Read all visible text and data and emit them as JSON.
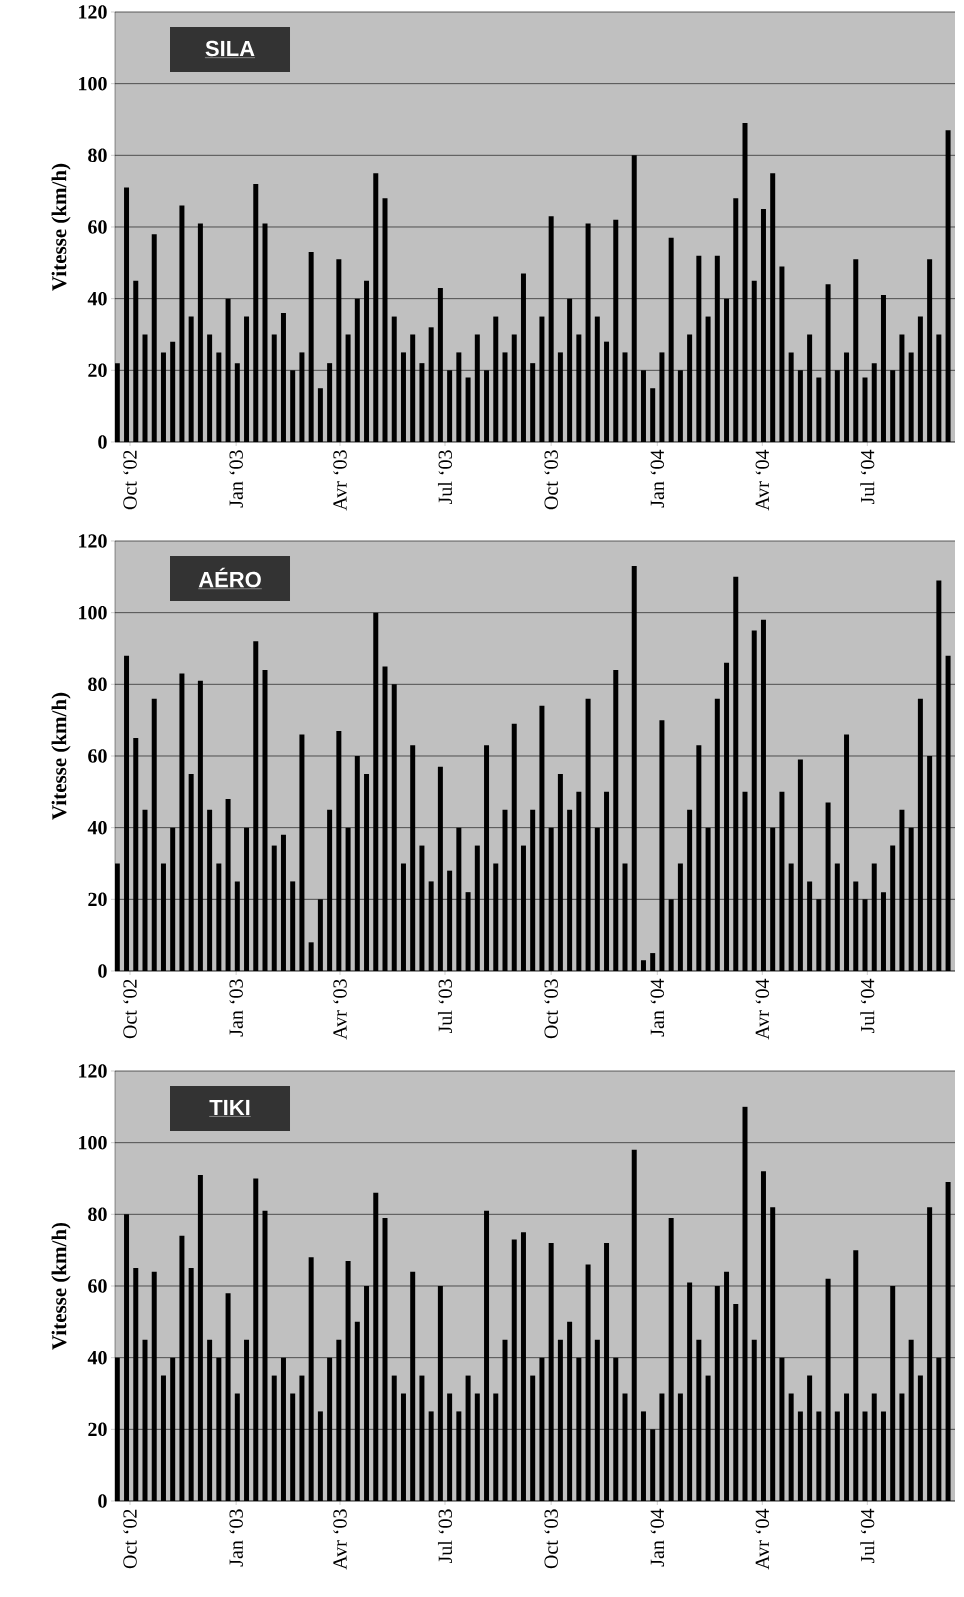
{
  "chart_data": [
    {
      "type": "bar",
      "title": "SILA",
      "ylabel": "Vitesse (km/h)",
      "color": "#000000",
      "grid": "y",
      "xlim": [
        "2002-09-18",
        "2004-09-15"
      ],
      "ylim": [
        0,
        120
      ],
      "yticks": [
        0,
        20,
        40,
        60,
        80,
        100,
        120
      ],
      "xticks": [
        {
          "value": "2002-10-01",
          "label": "Oct ‘02"
        },
        {
          "value": "2003-01-01",
          "label": "Jan ‘03"
        },
        {
          "value": "2003-04-01",
          "label": "Avr ‘03"
        },
        {
          "value": "2003-07-01",
          "label": "Jul ‘03"
        },
        {
          "value": "2003-10-01",
          "label": "Oct ‘03"
        },
        {
          "value": "2004-01-01",
          "label": "Jan ‘04"
        },
        {
          "value": "2004-04-01",
          "label": "Avr ‘04"
        },
        {
          "value": "2004-07-01",
          "label": "Jul ‘04"
        }
      ],
      "x": [
        "2002-09-20",
        "2002-09-28",
        "2002-10-06",
        "2002-10-14",
        "2002-10-22",
        "2002-10-30",
        "2002-11-07",
        "2002-11-15",
        "2002-11-23",
        "2002-12-01",
        "2002-12-09",
        "2002-12-17",
        "2002-12-25",
        "2003-01-02",
        "2003-01-10",
        "2003-01-18",
        "2003-01-26",
        "2003-02-03",
        "2003-02-11",
        "2003-02-19",
        "2003-02-27",
        "2003-03-07",
        "2003-03-15",
        "2003-03-23",
        "2003-03-31",
        "2003-04-08",
        "2003-04-16",
        "2003-04-24",
        "2003-05-02",
        "2003-05-10",
        "2003-05-18",
        "2003-05-26",
        "2003-06-03",
        "2003-06-11",
        "2003-06-19",
        "2003-06-27",
        "2003-07-05",
        "2003-07-13",
        "2003-07-21",
        "2003-07-29",
        "2003-08-06",
        "2003-08-14",
        "2003-08-22",
        "2003-08-30",
        "2003-09-07",
        "2003-09-15",
        "2003-09-23",
        "2003-10-01",
        "2003-10-09",
        "2003-10-17",
        "2003-10-25",
        "2003-11-02",
        "2003-11-10",
        "2003-11-18",
        "2003-11-26",
        "2003-12-04",
        "2003-12-12",
        "2003-12-20",
        "2003-12-28",
        "2004-01-05",
        "2004-01-13",
        "2004-01-21",
        "2004-01-29",
        "2004-02-06",
        "2004-02-14",
        "2004-02-22",
        "2004-03-01",
        "2004-03-09",
        "2004-03-17",
        "2004-03-25",
        "2004-04-02",
        "2004-04-10",
        "2004-04-18",
        "2004-04-26",
        "2004-05-04",
        "2004-05-12",
        "2004-05-20",
        "2004-05-28",
        "2004-06-05",
        "2004-06-13",
        "2004-06-21",
        "2004-06-29",
        "2004-07-07",
        "2004-07-15",
        "2004-07-23",
        "2004-07-31",
        "2004-08-08",
        "2004-08-16",
        "2004-08-24",
        "2004-09-01",
        "2004-09-09"
      ],
      "values": [
        22,
        71,
        45,
        30,
        58,
        25,
        28,
        66,
        35,
        61,
        30,
        25,
        40,
        22,
        35,
        72,
        61,
        30,
        36,
        20,
        25,
        53,
        15,
        22,
        51,
        30,
        40,
        45,
        75,
        68,
        35,
        25,
        30,
        22,
        32,
        43,
        20,
        25,
        18,
        30,
        20,
        35,
        25,
        30,
        47,
        22,
        35,
        63,
        25,
        40,
        30,
        61,
        35,
        28,
        62,
        25,
        80,
        20,
        15,
        25,
        57,
        20,
        30,
        52,
        35,
        52,
        40,
        68,
        89,
        45,
        65,
        75,
        49,
        25,
        20,
        30,
        18,
        44,
        20,
        25,
        51,
        18,
        22,
        41,
        20,
        30,
        25,
        35,
        51,
        30,
        87
      ]
    },
    {
      "type": "bar",
      "title": "AÉRO",
      "ylabel": "Vitesse (km/h)",
      "color": "#000000",
      "grid": "y",
      "xlim": [
        "2002-09-18",
        "2004-09-15"
      ],
      "ylim": [
        0,
        120
      ],
      "yticks": [
        0,
        20,
        40,
        60,
        80,
        100,
        120
      ],
      "xticks": [
        {
          "value": "2002-10-01",
          "label": "Oct ‘02"
        },
        {
          "value": "2003-01-01",
          "label": "Jan ‘03"
        },
        {
          "value": "2003-04-01",
          "label": "Avr ‘03"
        },
        {
          "value": "2003-07-01",
          "label": "Jul ‘03"
        },
        {
          "value": "2003-10-01",
          "label": "Oct ‘03"
        },
        {
          "value": "2004-01-01",
          "label": "Jan ‘04"
        },
        {
          "value": "2004-04-01",
          "label": "Avr ‘04"
        },
        {
          "value": "2004-07-01",
          "label": "Jul ‘04"
        }
      ],
      "x": [
        "2002-09-20",
        "2002-09-28",
        "2002-10-06",
        "2002-10-14",
        "2002-10-22",
        "2002-10-30",
        "2002-11-07",
        "2002-11-15",
        "2002-11-23",
        "2002-12-01",
        "2002-12-09",
        "2002-12-17",
        "2002-12-25",
        "2003-01-02",
        "2003-01-10",
        "2003-01-18",
        "2003-01-26",
        "2003-02-03",
        "2003-02-11",
        "2003-02-19",
        "2003-02-27",
        "2003-03-07",
        "2003-03-15",
        "2003-03-23",
        "2003-03-31",
        "2003-04-08",
        "2003-04-16",
        "2003-04-24",
        "2003-05-02",
        "2003-05-10",
        "2003-05-18",
        "2003-05-26",
        "2003-06-03",
        "2003-06-11",
        "2003-06-19",
        "2003-06-27",
        "2003-07-05",
        "2003-07-13",
        "2003-07-21",
        "2003-07-29",
        "2003-08-06",
        "2003-08-14",
        "2003-08-22",
        "2003-08-30",
        "2003-09-07",
        "2003-09-15",
        "2003-09-23",
        "2003-10-01",
        "2003-10-09",
        "2003-10-17",
        "2003-10-25",
        "2003-11-02",
        "2003-11-10",
        "2003-11-18",
        "2003-11-26",
        "2003-12-04",
        "2003-12-12",
        "2003-12-20",
        "2003-12-28",
        "2004-01-05",
        "2004-01-13",
        "2004-01-21",
        "2004-01-29",
        "2004-02-06",
        "2004-02-14",
        "2004-02-22",
        "2004-03-01",
        "2004-03-09",
        "2004-03-17",
        "2004-03-25",
        "2004-04-02",
        "2004-04-10",
        "2004-04-18",
        "2004-04-26",
        "2004-05-04",
        "2004-05-12",
        "2004-05-20",
        "2004-05-28",
        "2004-06-05",
        "2004-06-13",
        "2004-06-21",
        "2004-06-29",
        "2004-07-07",
        "2004-07-15",
        "2004-07-23",
        "2004-07-31",
        "2004-08-08",
        "2004-08-16",
        "2004-08-24",
        "2004-09-01",
        "2004-09-09"
      ],
      "values": [
        30,
        88,
        65,
        45,
        76,
        30,
        40,
        83,
        55,
        81,
        45,
        30,
        48,
        25,
        40,
        92,
        84,
        35,
        38,
        25,
        66,
        8,
        20,
        45,
        67,
        40,
        60,
        55,
        100,
        85,
        80,
        30,
        63,
        35,
        25,
        57,
        28,
        40,
        22,
        35,
        63,
        30,
        45,
        69,
        35,
        45,
        74,
        40,
        55,
        45,
        50,
        76,
        40,
        50,
        84,
        30,
        113,
        3,
        5,
        70,
        20,
        30,
        45,
        63,
        40,
        76,
        86,
        110,
        50,
        95,
        98,
        40,
        50,
        30,
        59,
        25,
        20,
        47,
        30,
        66,
        25,
        20,
        30,
        22,
        35,
        45,
        40,
        76,
        60,
        109,
        88
      ]
    },
    {
      "type": "bar",
      "title": "TIKI",
      "ylabel": "Vitesse (km/h)",
      "color": "#000000",
      "grid": "y",
      "xlim": [
        "2002-09-18",
        "2004-09-15"
      ],
      "ylim": [
        0,
        120
      ],
      "yticks": [
        0,
        20,
        40,
        60,
        80,
        100,
        120
      ],
      "xticks": [
        {
          "value": "2002-10-01",
          "label": "Oct ‘02"
        },
        {
          "value": "2003-01-01",
          "label": "Jan ‘03"
        },
        {
          "value": "2003-04-01",
          "label": "Avr ‘03"
        },
        {
          "value": "2003-07-01",
          "label": "Jul ‘03"
        },
        {
          "value": "2003-10-01",
          "label": "Oct ‘03"
        },
        {
          "value": "2004-01-01",
          "label": "Jan ‘04"
        },
        {
          "value": "2004-04-01",
          "label": "Avr ‘04"
        },
        {
          "value": "2004-07-01",
          "label": "Jul ‘04"
        }
      ],
      "x": [
        "2002-09-20",
        "2002-09-28",
        "2002-10-06",
        "2002-10-14",
        "2002-10-22",
        "2002-10-30",
        "2002-11-07",
        "2002-11-15",
        "2002-11-23",
        "2002-12-01",
        "2002-12-09",
        "2002-12-17",
        "2002-12-25",
        "2003-01-02",
        "2003-01-10",
        "2003-01-18",
        "2003-01-26",
        "2003-02-03",
        "2003-02-11",
        "2003-02-19",
        "2003-02-27",
        "2003-03-07",
        "2003-03-15",
        "2003-03-23",
        "2003-03-31",
        "2003-04-08",
        "2003-04-16",
        "2003-04-24",
        "2003-05-02",
        "2003-05-10",
        "2003-05-18",
        "2003-05-26",
        "2003-06-03",
        "2003-06-11",
        "2003-06-19",
        "2003-06-27",
        "2003-07-05",
        "2003-07-13",
        "2003-07-21",
        "2003-07-29",
        "2003-08-06",
        "2003-08-14",
        "2003-08-22",
        "2003-08-30",
        "2003-09-07",
        "2003-09-15",
        "2003-09-23",
        "2003-10-01",
        "2003-10-09",
        "2003-10-17",
        "2003-10-25",
        "2003-11-02",
        "2003-11-10",
        "2003-11-18",
        "2003-11-26",
        "2003-12-04",
        "2003-12-12",
        "2003-12-20",
        "2003-12-28",
        "2004-01-05",
        "2004-01-13",
        "2004-01-21",
        "2004-01-29",
        "2004-02-06",
        "2004-02-14",
        "2004-02-22",
        "2004-03-01",
        "2004-03-09",
        "2004-03-17",
        "2004-03-25",
        "2004-04-02",
        "2004-04-10",
        "2004-04-18",
        "2004-04-26",
        "2004-05-04",
        "2004-05-12",
        "2004-05-20",
        "2004-05-28",
        "2004-06-05",
        "2004-06-13",
        "2004-06-21",
        "2004-06-29",
        "2004-07-07",
        "2004-07-15",
        "2004-07-23",
        "2004-07-31",
        "2004-08-08",
        "2004-08-16",
        "2004-08-24",
        "2004-09-01",
        "2004-09-09"
      ],
      "values": [
        40,
        80,
        65,
        45,
        64,
        35,
        40,
        74,
        65,
        91,
        45,
        40,
        58,
        30,
        45,
        90,
        81,
        35,
        40,
        30,
        35,
        68,
        25,
        40,
        45,
        67,
        50,
        60,
        86,
        79,
        35,
        30,
        64,
        35,
        25,
        60,
        30,
        25,
        35,
        30,
        81,
        30,
        45,
        73,
        75,
        35,
        40,
        72,
        45,
        50,
        40,
        66,
        45,
        72,
        40,
        30,
        98,
        25,
        20,
        30,
        79,
        30,
        61,
        45,
        35,
        60,
        64,
        55,
        110,
        45,
        92,
        82,
        40,
        30,
        25,
        35,
        25,
        62,
        25,
        30,
        70,
        25,
        30,
        25,
        60,
        30,
        45,
        35,
        82,
        40,
        89
      ]
    }
  ]
}
